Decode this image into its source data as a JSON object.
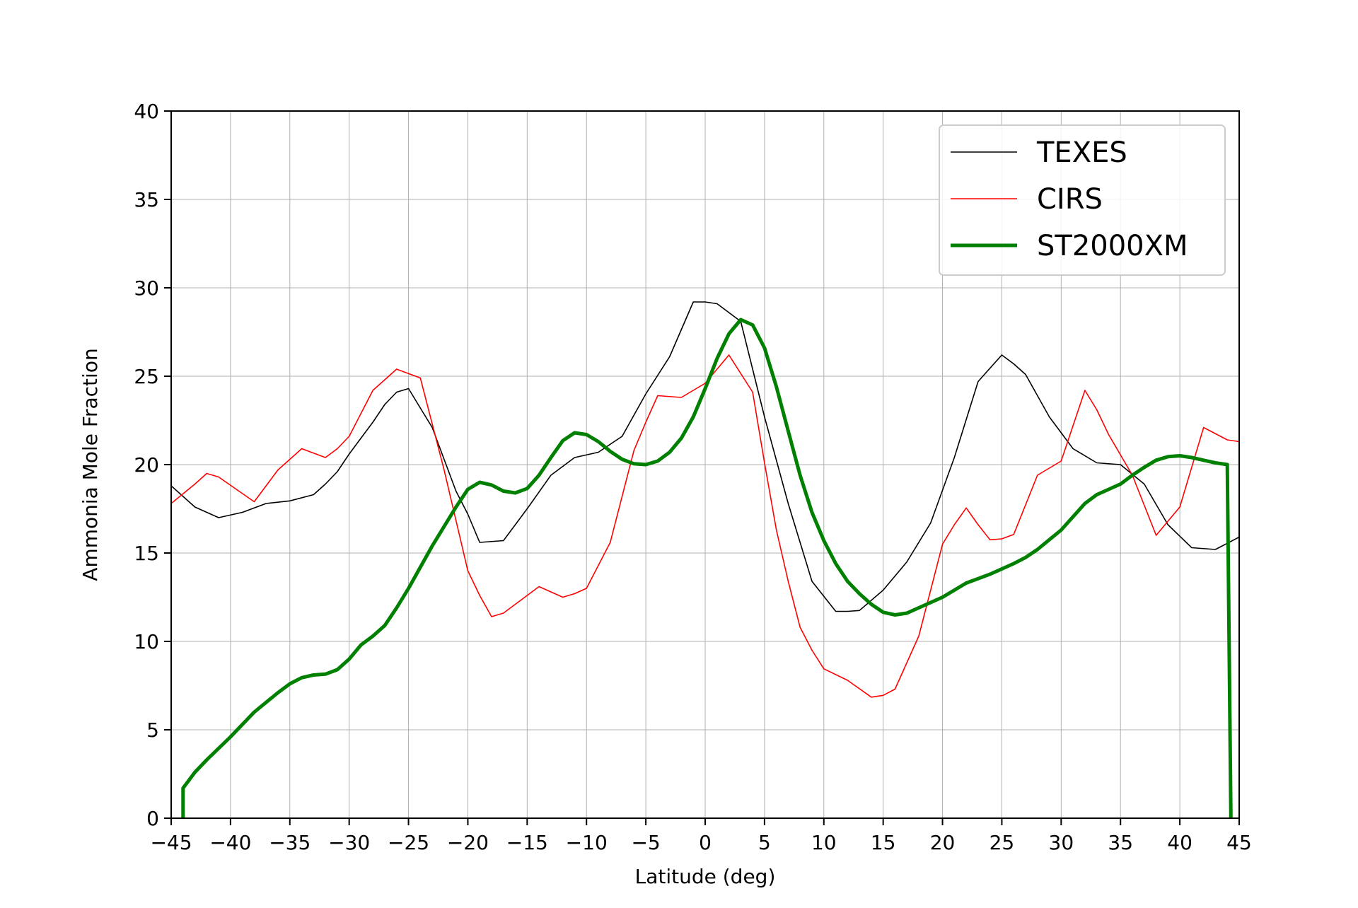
{
  "chart_data": {
    "type": "line",
    "title": "",
    "xlabel": "Latitude (deg)",
    "ylabel": "Ammonia Mole Fraction",
    "xlim": [
      -45,
      45
    ],
    "ylim": [
      0,
      40
    ],
    "xticks": [
      -45,
      -40,
      -35,
      -30,
      -25,
      -20,
      -15,
      -10,
      -5,
      0,
      5,
      10,
      15,
      20,
      25,
      30,
      35,
      40,
      45
    ],
    "xtick_labels": [
      "−45",
      "−40",
      "−35",
      "−30",
      "−25",
      "−20",
      "−15",
      "−10",
      "−5",
      "0",
      "5",
      "10",
      "15",
      "20",
      "25",
      "30",
      "35",
      "40",
      "45"
    ],
    "yticks": [
      0,
      5,
      10,
      15,
      20,
      25,
      30,
      35,
      40
    ],
    "ytick_labels": [
      "0",
      "5",
      "10",
      "15",
      "20",
      "25",
      "30",
      "35",
      "40"
    ],
    "grid": true,
    "legend_position": "top-right",
    "series": [
      {
        "name": "TEXES",
        "color": "#000000",
        "style": "thin",
        "points": [
          [
            -45,
            18.8
          ],
          [
            -43,
            17.6
          ],
          [
            -41,
            17.0
          ],
          [
            -39,
            17.3
          ],
          [
            -37,
            17.8
          ],
          [
            -35,
            17.95
          ],
          [
            -33,
            18.3
          ],
          [
            -32,
            18.9
          ],
          [
            -31,
            19.6
          ],
          [
            -30,
            20.6
          ],
          [
            -29,
            21.5
          ],
          [
            -28,
            22.4
          ],
          [
            -27,
            23.4
          ],
          [
            -26,
            24.1
          ],
          [
            -25,
            24.3
          ],
          [
            -24,
            23.2
          ],
          [
            -23,
            22.1
          ],
          [
            -22,
            20.3
          ],
          [
            -21,
            18.5
          ],
          [
            -20,
            17.2
          ],
          [
            -19,
            15.6
          ],
          [
            -17,
            15.7
          ],
          [
            -15,
            17.5
          ],
          [
            -13,
            19.4
          ],
          [
            -11,
            20.4
          ],
          [
            -9,
            20.7
          ],
          [
            -7,
            21.6
          ],
          [
            -5,
            24.0
          ],
          [
            -3,
            26.1
          ],
          [
            -1,
            29.2
          ],
          [
            0,
            29.2
          ],
          [
            1,
            29.1
          ],
          [
            3,
            28.1
          ],
          [
            4,
            25.4
          ],
          [
            5,
            22.7
          ],
          [
            7,
            17.8
          ],
          [
            9,
            13.4
          ],
          [
            11,
            11.7
          ],
          [
            12,
            11.7
          ],
          [
            13,
            11.75
          ],
          [
            15,
            12.9
          ],
          [
            17,
            14.5
          ],
          [
            19,
            16.7
          ],
          [
            21,
            20.4
          ],
          [
            23,
            24.7
          ],
          [
            25,
            26.2
          ],
          [
            26,
            25.7
          ],
          [
            27,
            25.1
          ],
          [
            29,
            22.7
          ],
          [
            31,
            20.9
          ],
          [
            33,
            20.1
          ],
          [
            35,
            20.0
          ],
          [
            37,
            18.9
          ],
          [
            39,
            16.6
          ],
          [
            41,
            15.3
          ],
          [
            43,
            15.2
          ],
          [
            45,
            15.9
          ]
        ]
      },
      {
        "name": "CIRS",
        "color": "#ff0000",
        "style": "thin",
        "points": [
          [
            -45,
            17.8
          ],
          [
            -43,
            18.9
          ],
          [
            -42,
            19.5
          ],
          [
            -41,
            19.3
          ],
          [
            -38,
            17.9
          ],
          [
            -36,
            19.7
          ],
          [
            -34,
            20.9
          ],
          [
            -32,
            20.4
          ],
          [
            -31,
            20.9
          ],
          [
            -30,
            21.6
          ],
          [
            -28,
            24.2
          ],
          [
            -26,
            25.4
          ],
          [
            -24,
            24.9
          ],
          [
            -22,
            19.7
          ],
          [
            -20,
            14.0
          ],
          [
            -19,
            12.6
          ],
          [
            -18,
            11.4
          ],
          [
            -17,
            11.6
          ],
          [
            -14,
            13.1
          ],
          [
            -12,
            12.5
          ],
          [
            -11,
            12.7
          ],
          [
            -10,
            13.0
          ],
          [
            -8,
            15.6
          ],
          [
            -6,
            20.8
          ],
          [
            -5,
            22.4
          ],
          [
            -4,
            23.9
          ],
          [
            -2,
            23.8
          ],
          [
            -1,
            24.2
          ],
          [
            0,
            24.6
          ],
          [
            2,
            26.2
          ],
          [
            4,
            24.1
          ],
          [
            5,
            20.1
          ],
          [
            6,
            16.3
          ],
          [
            7,
            13.4
          ],
          [
            8,
            10.8
          ],
          [
            9,
            9.5
          ],
          [
            10,
            8.45
          ],
          [
            12,
            7.8
          ],
          [
            14,
            6.85
          ],
          [
            15,
            6.95
          ],
          [
            16,
            7.3
          ],
          [
            18,
            10.3
          ],
          [
            20,
            15.5
          ],
          [
            21,
            16.6
          ],
          [
            22,
            17.55
          ],
          [
            23,
            16.6
          ],
          [
            24,
            15.75
          ],
          [
            25,
            15.8
          ],
          [
            26,
            16.05
          ],
          [
            28,
            19.4
          ],
          [
            30,
            20.2
          ],
          [
            32,
            24.2
          ],
          [
            33,
            23.1
          ],
          [
            34,
            21.7
          ],
          [
            36,
            19.4
          ],
          [
            38,
            16.0
          ],
          [
            40,
            17.6
          ],
          [
            42,
            22.1
          ],
          [
            44,
            21.4
          ],
          [
            45,
            21.3
          ]
        ]
      },
      {
        "name": "ST2000XM",
        "color": "#008000",
        "style": "thick",
        "points": [
          [
            -44,
            0.0
          ],
          [
            -44,
            1.7
          ],
          [
            -43,
            2.6
          ],
          [
            -42,
            3.3
          ],
          [
            -40,
            4.6
          ],
          [
            -38,
            6.0
          ],
          [
            -36,
            7.1
          ],
          [
            -35,
            7.6
          ],
          [
            -34,
            7.95
          ],
          [
            -33,
            8.1
          ],
          [
            -32,
            8.15
          ],
          [
            -31,
            8.4
          ],
          [
            -30,
            9.0
          ],
          [
            -29,
            9.8
          ],
          [
            -28,
            10.3
          ],
          [
            -27,
            10.9
          ],
          [
            -26,
            11.9
          ],
          [
            -25,
            13.0
          ],
          [
            -23,
            15.4
          ],
          [
            -21,
            17.6
          ],
          [
            -20,
            18.6
          ],
          [
            -19,
            19.0
          ],
          [
            -18,
            18.85
          ],
          [
            -17,
            18.5
          ],
          [
            -16,
            18.4
          ],
          [
            -15,
            18.65
          ],
          [
            -14,
            19.4
          ],
          [
            -13,
            20.4
          ],
          [
            -12,
            21.35
          ],
          [
            -11,
            21.8
          ],
          [
            -10,
            21.7
          ],
          [
            -9,
            21.3
          ],
          [
            -8,
            20.75
          ],
          [
            -7,
            20.3
          ],
          [
            -6,
            20.05
          ],
          [
            -5,
            20.0
          ],
          [
            -4,
            20.2
          ],
          [
            -3,
            20.7
          ],
          [
            -2,
            21.5
          ],
          [
            -1,
            22.7
          ],
          [
            0,
            24.3
          ],
          [
            1,
            26.0
          ],
          [
            2,
            27.4
          ],
          [
            3,
            28.2
          ],
          [
            4,
            27.9
          ],
          [
            5,
            26.6
          ],
          [
            6,
            24.4
          ],
          [
            7,
            21.9
          ],
          [
            8,
            19.4
          ],
          [
            9,
            17.3
          ],
          [
            10,
            15.7
          ],
          [
            11,
            14.4
          ],
          [
            12,
            13.4
          ],
          [
            13,
            12.7
          ],
          [
            14,
            12.1
          ],
          [
            15,
            11.65
          ],
          [
            16,
            11.5
          ],
          [
            17,
            11.6
          ],
          [
            18,
            11.9
          ],
          [
            20,
            12.5
          ],
          [
            22,
            13.3
          ],
          [
            24,
            13.8
          ],
          [
            26,
            14.4
          ],
          [
            27,
            14.75
          ],
          [
            28,
            15.2
          ],
          [
            30,
            16.3
          ],
          [
            32,
            17.8
          ],
          [
            33,
            18.3
          ],
          [
            35,
            18.9
          ],
          [
            36,
            19.4
          ],
          [
            37,
            19.85
          ],
          [
            38,
            20.25
          ],
          [
            39,
            20.45
          ],
          [
            40,
            20.5
          ],
          [
            41,
            20.4
          ],
          [
            42,
            20.25
          ],
          [
            43,
            20.1
          ],
          [
            44,
            20.0
          ],
          [
            44.3,
            0.0
          ]
        ]
      }
    ]
  }
}
